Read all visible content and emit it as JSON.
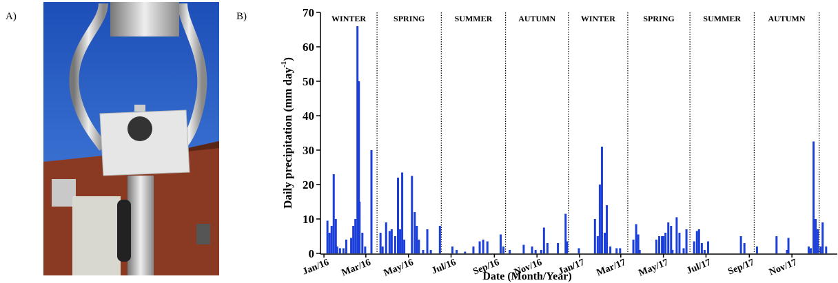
{
  "panel_labels": [
    "A)",
    "B)"
  ],
  "chart_data": {
    "type": "bar",
    "x_label": "Date (Month/Year)",
    "y_label": {
      "text": "Daily precipitation (mm day",
      "superscript": "-1",
      "close": ")"
    },
    "color": "#1b3fd8",
    "xlim": [
      -5,
      735
    ],
    "ylim": [
      0,
      70
    ],
    "yticks": [
      0,
      10,
      20,
      30,
      40,
      50,
      60,
      70
    ],
    "xticks": [
      {
        "value": 0,
        "label": "Jan/16"
      },
      {
        "value": 60,
        "label": "Mar/16"
      },
      {
        "value": 121,
        "label": "May/16"
      },
      {
        "value": 182,
        "label": "Jul/16"
      },
      {
        "value": 244,
        "label": "Sep/16"
      },
      {
        "value": 305,
        "label": "Nov/16"
      },
      {
        "value": 366,
        "label": "Jan/17"
      },
      {
        "value": 425,
        "label": "Mar/17"
      },
      {
        "value": 486,
        "label": "May/17"
      },
      {
        "value": 547,
        "label": "Jul/17"
      },
      {
        "value": 609,
        "label": "Sep/17"
      },
      {
        "value": 670,
        "label": "Nov/17"
      }
    ],
    "season_breaks": [
      76,
      168,
      260,
      350,
      435,
      524,
      616,
      709
    ],
    "season_labels": [
      "WINTER",
      "SPRING",
      "SUMMER",
      "AUTUMN",
      "WINTER",
      "SPRING",
      "SUMMER",
      "AUTUMN"
    ],
    "x": [
      5,
      8,
      11,
      14,
      17,
      19,
      23,
      28,
      32,
      39,
      42,
      45,
      48,
      50,
      51,
      55,
      59,
      68,
      81,
      84,
      89,
      94,
      97,
      102,
      106,
      109,
      112,
      115,
      126,
      130,
      133,
      136,
      142,
      148,
      153,
      166,
      184,
      190,
      202,
      214,
      223,
      228,
      234,
      253,
      257,
      266,
      286,
      298,
      303,
      311,
      315,
      320,
      335,
      346,
      348,
      365,
      388,
      392,
      395,
      398,
      402,
      405,
      410,
      419,
      424,
      443,
      447,
      450,
      452,
      476,
      480,
      484,
      486,
      489,
      493,
      497,
      499,
      505,
      509,
      515,
      519,
      530,
      534,
      537,
      541,
      545,
      550,
      597,
      602,
      620,
      648,
      663,
      665,
      694,
      697,
      701,
      704,
      707,
      711,
      714,
      719
    ],
    "values": [
      9.5,
      6,
      8,
      23,
      10,
      2,
      1.5,
      1.5,
      4,
      4.5,
      8,
      10,
      66,
      50,
      15,
      6,
      2,
      30,
      6,
      2,
      9,
      6.5,
      7,
      5,
      22,
      7,
      23.5,
      4,
      22.5,
      12,
      8,
      4,
      1,
      7,
      1,
      8,
      2,
      1,
      0.5,
      2,
      3.5,
      4,
      3.5,
      5.5,
      2,
      1,
      2.5,
      2,
      1,
      1,
      7.5,
      3,
      3,
      11.5,
      3.5,
      1.5,
      10,
      5,
      20,
      31,
      6,
      14,
      2,
      1.5,
      1.5,
      4,
      8.5,
      5.5,
      1,
      4,
      5,
      5,
      5,
      6,
      9,
      8,
      1,
      10.5,
      6,
      1.5,
      7,
      3.5,
      6.5,
      7,
      3,
      1,
      3.5,
      5,
      3,
      2,
      5,
      1,
      4.5,
      2,
      1.5,
      32.5,
      10,
      7,
      2,
      9,
      2
    ]
  }
}
